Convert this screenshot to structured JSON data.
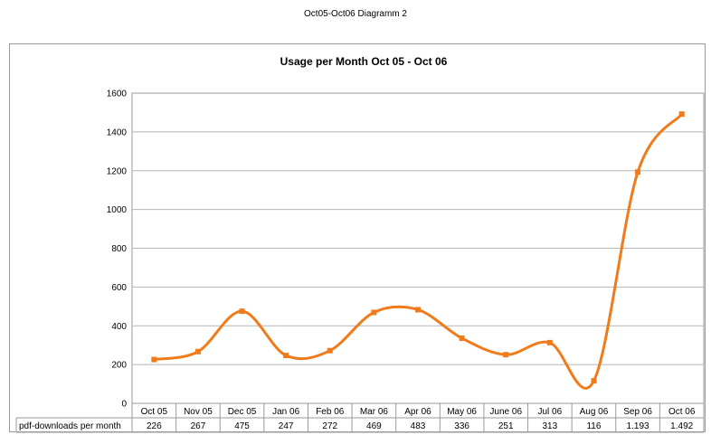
{
  "page_title": "Oct05-Oct06 Diagramm 2",
  "chart_data": {
    "type": "line",
    "title": "Usage per Month Oct 05 - Oct 06",
    "categories": [
      "Oct 05",
      "Nov 05",
      "Dec 05",
      "Jan 06",
      "Feb 06",
      "Mar 06",
      "Apr 06",
      "May 06",
      "June 06",
      "Jul 06",
      "Aug 06",
      "Sep 06",
      "Oct 06"
    ],
    "series": [
      {
        "name": "pdf-downloads per month",
        "values": [
          226,
          267,
          475,
          247,
          272,
          469,
          483,
          336,
          251,
          313,
          116,
          1193,
          1492
        ],
        "value_labels": [
          "226",
          "267",
          "475",
          "247",
          "272",
          "469",
          "483",
          "336",
          "251",
          "313",
          "116",
          "1.193",
          "1.492"
        ],
        "color": "#f07b1a"
      }
    ],
    "ylim": [
      0,
      1600
    ],
    "yticks": [
      0,
      200,
      400,
      600,
      800,
      1000,
      1200,
      1400,
      1600
    ],
    "grid": true,
    "data_table": true
  }
}
